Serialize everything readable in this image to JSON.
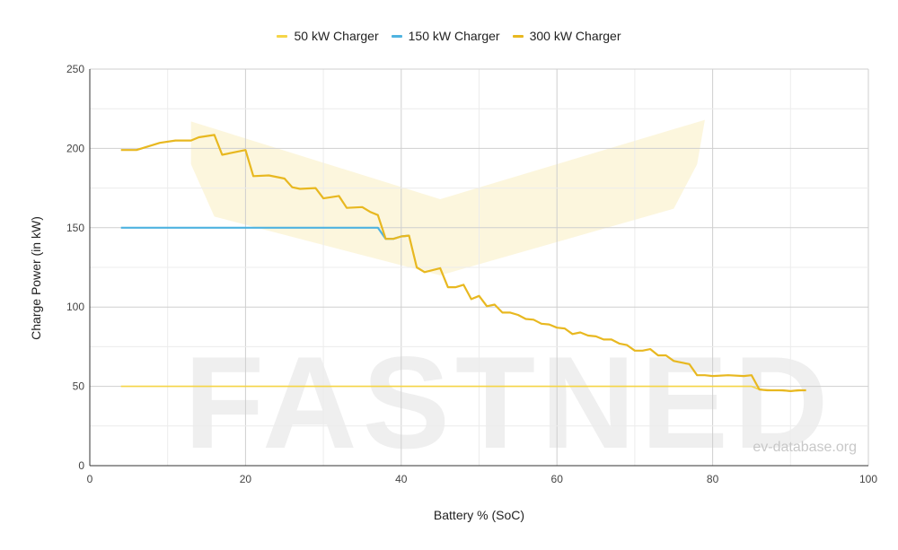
{
  "chart_data": {
    "type": "line",
    "title": "",
    "xlabel": "Battery % (SoC)",
    "ylabel": "Charge Power (in kW)",
    "xlim": [
      0,
      100
    ],
    "ylim": [
      0,
      250
    ],
    "x_ticks": [
      0,
      20,
      40,
      60,
      80,
      100
    ],
    "y_ticks": [
      0,
      50,
      100,
      150,
      200,
      250
    ],
    "grid": true,
    "legend_position": "top-center",
    "watermark": "ev-database.org",
    "logo_text": "FASTNED",
    "series": [
      {
        "name": "50 kW Charger",
        "color": "#f5d547",
        "x": [
          4,
          85,
          86,
          88,
          90,
          92
        ],
        "y": [
          50,
          50,
          48,
          47.5,
          47,
          47.5
        ]
      },
      {
        "name": "150 kW Charger",
        "color": "#4fb3e0",
        "x": [
          4,
          37,
          38,
          39,
          40,
          41
        ],
        "y": [
          150,
          150,
          143,
          143,
          144.5,
          145
        ]
      },
      {
        "name": "300 kW Charger",
        "color": "#e8b820",
        "x": [
          4,
          6,
          9,
          11,
          13,
          14,
          16,
          17,
          20,
          21,
          23,
          25,
          26,
          27,
          29,
          30,
          32,
          33,
          35,
          36,
          37,
          38,
          39,
          40,
          41,
          42,
          43,
          45,
          46,
          47,
          48,
          49,
          50,
          51,
          52,
          53,
          54,
          55,
          56,
          57,
          58,
          59,
          60,
          61,
          62,
          63,
          64,
          65,
          66,
          67,
          68,
          69,
          70,
          71,
          72,
          73,
          74,
          75,
          76,
          77,
          78,
          79,
          80,
          82,
          84,
          85,
          86,
          87,
          88,
          89,
          90,
          91,
          92
        ],
        "y": [
          199,
          199,
          203.5,
          205,
          205,
          207,
          208.5,
          196,
          199,
          182.5,
          183,
          181,
          175.5,
          174.5,
          175,
          168.5,
          170,
          162.5,
          163,
          160,
          158,
          143,
          143,
          144.5,
          145,
          125,
          122,
          124.5,
          112.5,
          112.5,
          114,
          105,
          107,
          100.5,
          101.5,
          96.5,
          96.5,
          95,
          92.5,
          92,
          89.5,
          89,
          87,
          86.5,
          83,
          84,
          82,
          81.5,
          79.5,
          79.5,
          77,
          76,
          72.5,
          72.5,
          73.5,
          69.5,
          69.5,
          66,
          65,
          64,
          57,
          57,
          56.5,
          57,
          56.5,
          57,
          48,
          47.5,
          47.5,
          47.5,
          47,
          47.5,
          47.5
        ]
      }
    ]
  }
}
